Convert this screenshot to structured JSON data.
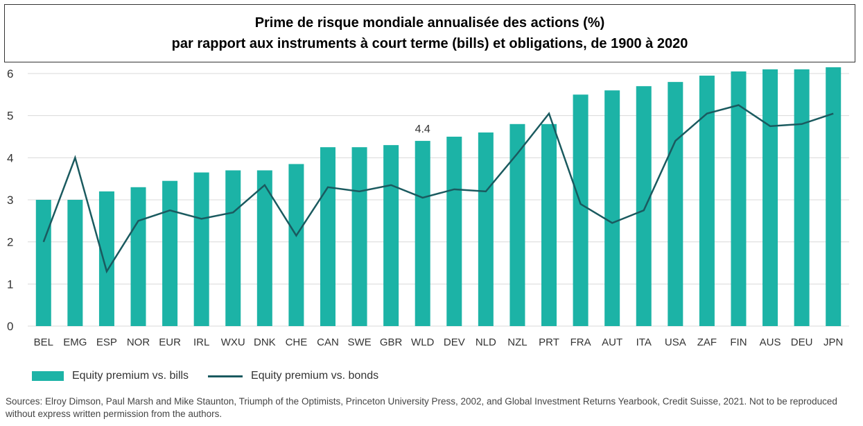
{
  "title": {
    "line1": "Prime de risque mondiale annualisée des actions (%)",
    "line2": "par rapport aux instruments à court terme (bills) et obligations, de 1900 à 2020"
  },
  "colors": {
    "bars": "#1cb3a6",
    "line": "#1a5a5f",
    "grid": "#d9d9d9",
    "axis_text": "#333333"
  },
  "chart_data": {
    "type": "bar",
    "categories": [
      "BEL",
      "EMG",
      "ESP",
      "NOR",
      "EUR",
      "IRL",
      "WXU",
      "DNK",
      "CHE",
      "CAN",
      "SWE",
      "GBR",
      "WLD",
      "DEV",
      "NLD",
      "NZL",
      "PRT",
      "FRA",
      "AUT",
      "ITA",
      "USA",
      "ZAF",
      "FIN",
      "AUS",
      "DEU",
      "JPN"
    ],
    "series": [
      {
        "name": "Equity premium vs. bills",
        "type": "bar",
        "values": [
          3.0,
          3.0,
          3.2,
          3.3,
          3.45,
          3.65,
          3.7,
          3.7,
          3.85,
          4.25,
          4.25,
          4.3,
          4.4,
          4.5,
          4.6,
          4.8,
          4.8,
          5.5,
          5.6,
          5.7,
          5.8,
          5.95,
          6.05,
          6.1,
          6.1,
          6.15
        ]
      },
      {
        "name": "Equity premium vs. bonds",
        "type": "line",
        "values": [
          2.0,
          4.0,
          1.3,
          2.5,
          2.75,
          2.55,
          2.7,
          3.35,
          2.15,
          3.3,
          3.2,
          3.35,
          3.05,
          3.25,
          3.2,
          4.1,
          5.05,
          2.9,
          2.45,
          2.75,
          4.4,
          5.05,
          5.25,
          4.75,
          4.8,
          5.05
        ]
      }
    ],
    "annotations": [
      {
        "category": "WLD",
        "text": "4.4"
      }
    ],
    "ylim": [
      0,
      6
    ],
    "yticks": [
      "0",
      "1",
      "2",
      "3",
      "4",
      "5",
      "6"
    ],
    "grid": true,
    "legend_position": "bottom-left"
  },
  "legend": {
    "bars_label": "Equity premium vs. bills",
    "line_label": "Equity premium vs. bonds"
  },
  "source": "Sources: Elroy Dimson, Paul Marsh and Mike Staunton, Triumph of the Optimists, Princeton University Press, 2002, and Global Investment Returns Yearbook, Credit Suisse, 2021. Not to be reproduced without express written permission from the authors."
}
